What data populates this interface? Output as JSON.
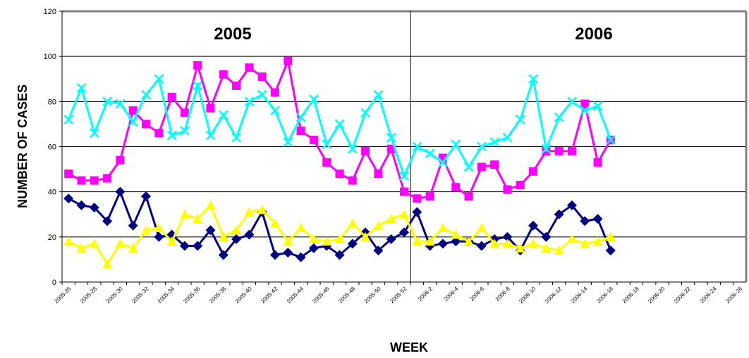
{
  "chart_data": {
    "type": "line",
    "annotations": [
      "2005",
      "2006"
    ],
    "x_label": "WEEK",
    "y_label": "NUMBER OF CASES",
    "categories": [
      "2005-26",
      null,
      "2005-28",
      null,
      "2005-30",
      null,
      "2005-32",
      null,
      "2005-34",
      null,
      "2005-36",
      null,
      "2005-38",
      null,
      "2005-40",
      null,
      "2005-42",
      null,
      "2005-44",
      null,
      "2005-46",
      null,
      "2005-48",
      null,
      "2005-50",
      null,
      "2005-52",
      null,
      "2006-2",
      null,
      "2006-4",
      null,
      "2006-6",
      null,
      "2006-8",
      null,
      "2006-10",
      null,
      "2006-12",
      null,
      "2006-14",
      null,
      "2006-16",
      null,
      "2006-18",
      null,
      "2006-20",
      null,
      "2006-22",
      null,
      "2006-24",
      null,
      "2006-26"
    ],
    "ylim": [
      0,
      120
    ],
    "yticks": [
      0,
      20,
      40,
      60,
      80,
      100,
      120
    ],
    "grid": true,
    "series": [
      {
        "color": "#000080",
        "marker": "diamond",
        "values": [
          37,
          34,
          33,
          27,
          40,
          25,
          38,
          20,
          21,
          16,
          16,
          23,
          12,
          19,
          21,
          31,
          12,
          13,
          11,
          15,
          16,
          12,
          17,
          22,
          14,
          19,
          22,
          31,
          16,
          17,
          18,
          18,
          16,
          19,
          20,
          14,
          25,
          20,
          30,
          34,
          27,
          28,
          14,
          null,
          null,
          null,
          null,
          null,
          null,
          null,
          null,
          null,
          null
        ]
      },
      {
        "color": "#ff00ff",
        "marker": "square",
        "values": [
          48,
          45,
          45,
          46,
          54,
          76,
          70,
          66,
          82,
          75,
          96,
          77,
          92,
          87,
          95,
          91,
          84,
          98,
          67,
          63,
          53,
          48,
          45,
          58,
          48,
          59,
          40,
          37,
          38,
          55,
          42,
          38,
          51,
          52,
          41,
          43,
          49,
          58,
          58,
          58,
          79,
          53,
          63,
          null,
          null,
          null,
          null,
          null,
          null,
          null,
          null,
          null,
          null
        ]
      },
      {
        "color": "#00ffff",
        "marker": "x",
        "values": [
          72,
          86,
          66,
          80,
          79,
          71,
          83,
          90,
          65,
          67,
          87,
          65,
          74,
          64,
          80,
          83,
          76,
          62,
          73,
          81,
          61,
          70,
          59,
          75,
          83,
          64,
          47,
          60,
          57,
          53,
          61,
          51,
          60,
          62,
          64,
          72,
          90,
          59,
          73,
          80,
          76,
          78,
          63,
          null,
          null,
          null,
          null,
          null,
          null,
          null,
          null,
          null,
          null
        ]
      },
      {
        "color": "#ffff00",
        "marker": "triangle",
        "values": [
          18,
          15,
          17,
          8,
          17,
          15,
          23,
          24,
          18,
          30,
          28,
          34,
          20,
          23,
          31,
          32,
          26,
          18,
          24,
          19,
          18,
          19,
          26,
          20,
          25,
          28,
          30,
          18,
          18,
          24,
          21,
          18,
          24,
          17,
          17,
          15,
          17,
          15,
          14,
          19,
          17,
          18,
          20,
          null,
          null,
          null,
          null,
          null,
          null,
          null,
          null,
          null,
          null
        ]
      }
    ]
  }
}
